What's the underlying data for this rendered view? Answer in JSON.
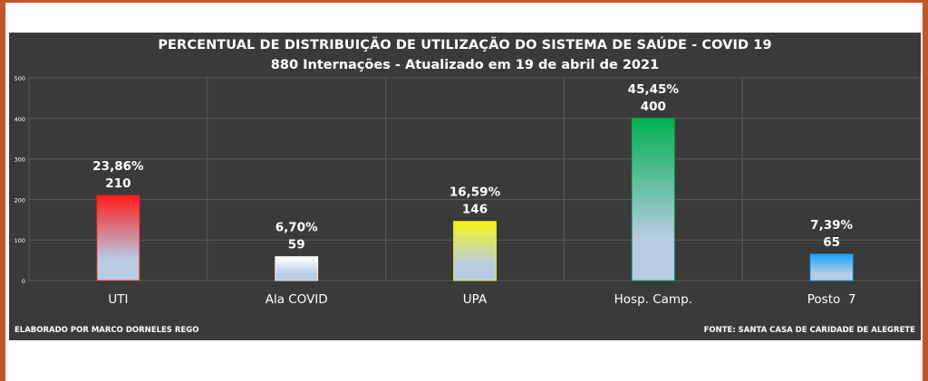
{
  "chart_data": {
    "type": "bar",
    "title": "PERCENTUAL DE DISTRIBUIÇÃO DE UTILIZAÇÃO DO SISTEMA DE SAÚDE - COVID 19",
    "subtitle": "880 Internações - Atualizado em 19 de abril de 2021",
    "categories": [
      "UTI",
      "Ala COVID",
      "UPA",
      "Hosp. Camp.",
      "Posto  7"
    ],
    "values": [
      210,
      59,
      146,
      400,
      65
    ],
    "value_labels": [
      "210",
      "59",
      "146",
      "400",
      "65"
    ],
    "percent_labels": [
      "23,86%",
      "6,70%",
      "16,59%",
      "45,45%",
      "7,39%"
    ],
    "bar_colors": [
      "#ff1a1a",
      "#ffffff",
      "#f5f51a",
      "#00b050",
      "#1aa3ff"
    ],
    "bar_base_color": "#b8cce4",
    "ylim": [
      0,
      500
    ],
    "yticks": [
      "0",
      "100",
      "200",
      "300",
      "400",
      "500"
    ],
    "grid": true,
    "background": "#3a3a3a"
  },
  "credits": {
    "author": "ELABORADO POR MARCO DORNELES REGO",
    "source": "FONTE: SANTA CASA DE CARIDADE DE ALEGRETE"
  }
}
